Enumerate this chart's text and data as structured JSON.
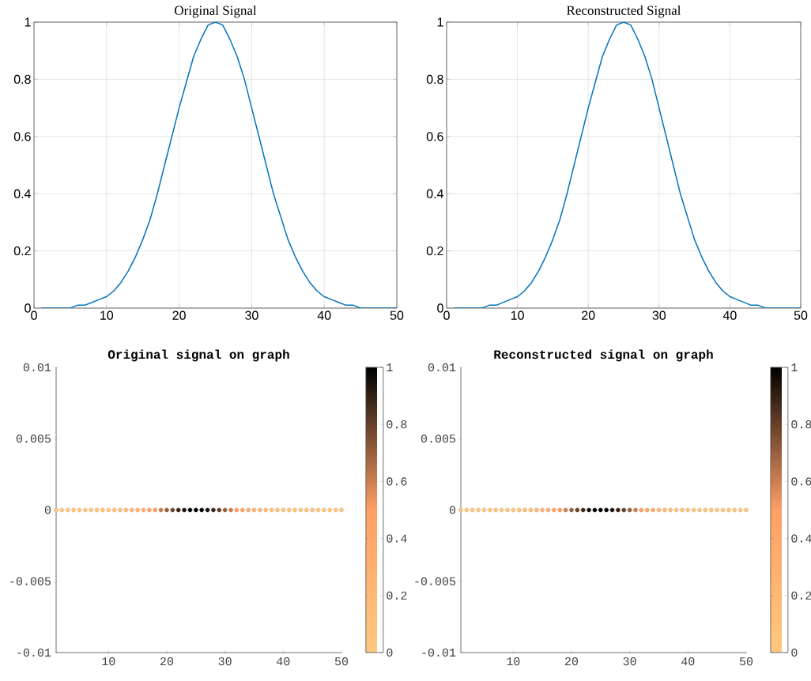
{
  "chart_data": [
    {
      "type": "line",
      "title": "Original Signal",
      "x": [
        1,
        2,
        3,
        4,
        5,
        6,
        7,
        8,
        9,
        10,
        11,
        12,
        13,
        14,
        15,
        16,
        17,
        18,
        19,
        20,
        21,
        22,
        23,
        24,
        25,
        26,
        27,
        28,
        29,
        30,
        31,
        32,
        33,
        34,
        35,
        36,
        37,
        38,
        39,
        40,
        41,
        42,
        43,
        44,
        45,
        46,
        47,
        48,
        49,
        50
      ],
      "values": [
        0.0,
        0.0,
        0.0,
        0.0,
        0.0,
        0.01,
        0.01,
        0.02,
        0.03,
        0.04,
        0.06,
        0.09,
        0.13,
        0.18,
        0.24,
        0.31,
        0.4,
        0.5,
        0.6,
        0.7,
        0.79,
        0.88,
        0.94,
        0.99,
        1.0,
        0.99,
        0.94,
        0.88,
        0.8,
        0.7,
        0.6,
        0.5,
        0.4,
        0.32,
        0.24,
        0.18,
        0.13,
        0.09,
        0.06,
        0.04,
        0.03,
        0.02,
        0.01,
        0.01,
        0.0,
        0.0,
        0.0,
        0.0,
        0.0,
        0.0
      ],
      "color": "#0072bd",
      "xlim": [
        0,
        50
      ],
      "ylim": [
        0,
        1
      ],
      "xticks": [
        0,
        10,
        20,
        30,
        40,
        50
      ],
      "yticks": [
        0,
        0.2,
        0.4,
        0.6,
        0.8,
        1
      ],
      "grid": true
    },
    {
      "type": "line",
      "title": "Reconstructed Signal",
      "x": [
        1,
        2,
        3,
        4,
        5,
        6,
        7,
        8,
        9,
        10,
        11,
        12,
        13,
        14,
        15,
        16,
        17,
        18,
        19,
        20,
        21,
        22,
        23,
        24,
        25,
        26,
        27,
        28,
        29,
        30,
        31,
        32,
        33,
        34,
        35,
        36,
        37,
        38,
        39,
        40,
        41,
        42,
        43,
        44,
        45,
        46,
        47,
        48,
        49,
        50
      ],
      "values": [
        0.0,
        0.0,
        0.0,
        0.0,
        0.0,
        0.01,
        0.01,
        0.02,
        0.03,
        0.04,
        0.06,
        0.09,
        0.13,
        0.18,
        0.24,
        0.31,
        0.4,
        0.5,
        0.6,
        0.7,
        0.79,
        0.88,
        0.94,
        0.99,
        1.0,
        0.99,
        0.94,
        0.88,
        0.8,
        0.7,
        0.6,
        0.5,
        0.4,
        0.32,
        0.24,
        0.18,
        0.13,
        0.09,
        0.06,
        0.04,
        0.03,
        0.02,
        0.01,
        0.01,
        0.0,
        0.0,
        0.0,
        0.0,
        0.0,
        0.0
      ],
      "color": "#0072bd",
      "xlim": [
        0,
        50
      ],
      "ylim": [
        0,
        1
      ],
      "xticks": [
        0,
        10,
        20,
        30,
        40,
        50
      ],
      "yticks": [
        0,
        0.2,
        0.4,
        0.6,
        0.8,
        1
      ],
      "grid": true
    },
    {
      "type": "scatter",
      "title": "Original signal on graph",
      "x": [
        1,
        2,
        3,
        4,
        5,
        6,
        7,
        8,
        9,
        10,
        11,
        12,
        13,
        14,
        15,
        16,
        17,
        18,
        19,
        20,
        21,
        22,
        23,
        24,
        25,
        26,
        27,
        28,
        29,
        30,
        31,
        32,
        33,
        34,
        35,
        36,
        37,
        38,
        39,
        40,
        41,
        42,
        43,
        44,
        45,
        46,
        47,
        48,
        49,
        50
      ],
      "values": [
        0,
        0,
        0,
        0,
        0,
        0,
        0,
        0,
        0,
        0,
        0,
        0,
        0,
        0,
        0,
        0,
        0,
        0,
        0,
        0,
        0,
        0,
        0,
        0,
        0,
        0,
        0,
        0,
        0,
        0,
        0,
        0,
        0,
        0,
        0,
        0,
        0,
        0,
        0,
        0,
        0,
        0,
        0,
        0,
        0,
        0,
        0,
        0,
        0,
        0
      ],
      "cvalues": [
        0.0,
        0.0,
        0.0,
        0.0,
        0.0,
        0.01,
        0.01,
        0.02,
        0.03,
        0.04,
        0.06,
        0.09,
        0.13,
        0.18,
        0.24,
        0.31,
        0.4,
        0.5,
        0.6,
        0.7,
        0.79,
        0.88,
        0.94,
        0.99,
        1.0,
        0.99,
        0.94,
        0.88,
        0.8,
        0.7,
        0.6,
        0.5,
        0.4,
        0.32,
        0.24,
        0.18,
        0.13,
        0.09,
        0.06,
        0.04,
        0.03,
        0.02,
        0.01,
        0.01,
        0.0,
        0.0,
        0.0,
        0.0,
        0.0,
        0.0
      ],
      "marker": "circle",
      "xlim": [
        1,
        50
      ],
      "ylim": [
        -0.01,
        0.01
      ],
      "xticks": [
        10,
        20,
        30,
        40,
        50
      ],
      "yticks": [
        -0.01,
        -0.005,
        0,
        0.005,
        0.01
      ],
      "clim": [
        0,
        1
      ],
      "cticks": [
        0,
        0.2,
        0.4,
        0.6,
        0.8,
        1
      ]
    },
    {
      "type": "scatter",
      "title": "Reconstructed signal on graph",
      "x": [
        1,
        2,
        3,
        4,
        5,
        6,
        7,
        8,
        9,
        10,
        11,
        12,
        13,
        14,
        15,
        16,
        17,
        18,
        19,
        20,
        21,
        22,
        23,
        24,
        25,
        26,
        27,
        28,
        29,
        30,
        31,
        32,
        33,
        34,
        35,
        36,
        37,
        38,
        39,
        40,
        41,
        42,
        43,
        44,
        45,
        46,
        47,
        48,
        49,
        50
      ],
      "values": [
        0,
        0,
        0,
        0,
        0,
        0,
        0,
        0,
        0,
        0,
        0,
        0,
        0,
        0,
        0,
        0,
        0,
        0,
        0,
        0,
        0,
        0,
        0,
        0,
        0,
        0,
        0,
        0,
        0,
        0,
        0,
        0,
        0,
        0,
        0,
        0,
        0,
        0,
        0,
        0,
        0,
        0,
        0,
        0,
        0,
        0,
        0,
        0,
        0,
        0
      ],
      "cvalues": [
        0.0,
        0.0,
        0.0,
        0.0,
        0.0,
        0.01,
        0.01,
        0.02,
        0.03,
        0.04,
        0.06,
        0.09,
        0.13,
        0.18,
        0.24,
        0.31,
        0.4,
        0.5,
        0.6,
        0.7,
        0.79,
        0.88,
        0.94,
        0.99,
        1.0,
        0.99,
        0.94,
        0.88,
        0.8,
        0.7,
        0.6,
        0.5,
        0.4,
        0.32,
        0.24,
        0.18,
        0.13,
        0.09,
        0.06,
        0.04,
        0.03,
        0.02,
        0.01,
        0.01,
        0.0,
        0.0,
        0.0,
        0.0,
        0.0,
        0.0
      ],
      "marker": "circle",
      "xlim": [
        1,
        50
      ],
      "ylim": [
        -0.01,
        0.01
      ],
      "xticks": [
        10,
        20,
        30,
        40,
        50
      ],
      "yticks": [
        -0.01,
        -0.005,
        0,
        0.005,
        0.01
      ],
      "clim": [
        0,
        1
      ],
      "cticks": [
        0,
        0.2,
        0.4,
        0.6,
        0.8,
        1
      ]
    }
  ]
}
